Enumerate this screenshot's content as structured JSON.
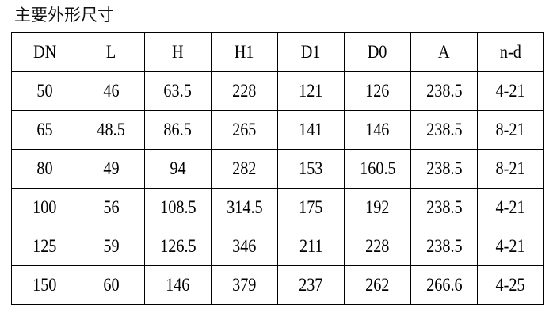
{
  "title": "主要外形尺寸",
  "table": {
    "headers": [
      "DN",
      "L",
      "H",
      "H1",
      "D1",
      "D0",
      "A",
      "n-d"
    ],
    "rows": [
      [
        "50",
        "46",
        "63.5",
        "228",
        "121",
        "126",
        "238.5",
        "4-21"
      ],
      [
        "65",
        "48.5",
        "86.5",
        "265",
        "141",
        "146",
        "238.5",
        "8-21"
      ],
      [
        "80",
        "49",
        "94",
        "282",
        "153",
        "160.5",
        "238.5",
        "8-21"
      ],
      [
        "100",
        "56",
        "108.5",
        "314.5",
        "175",
        "192",
        "238.5",
        "4-21"
      ],
      [
        "125",
        "59",
        "126.5",
        "346",
        "211",
        "228",
        "238.5",
        "4-21"
      ],
      [
        "150",
        "60",
        "146",
        "379",
        "237",
        "262",
        "266.6",
        "4-25"
      ]
    ]
  }
}
